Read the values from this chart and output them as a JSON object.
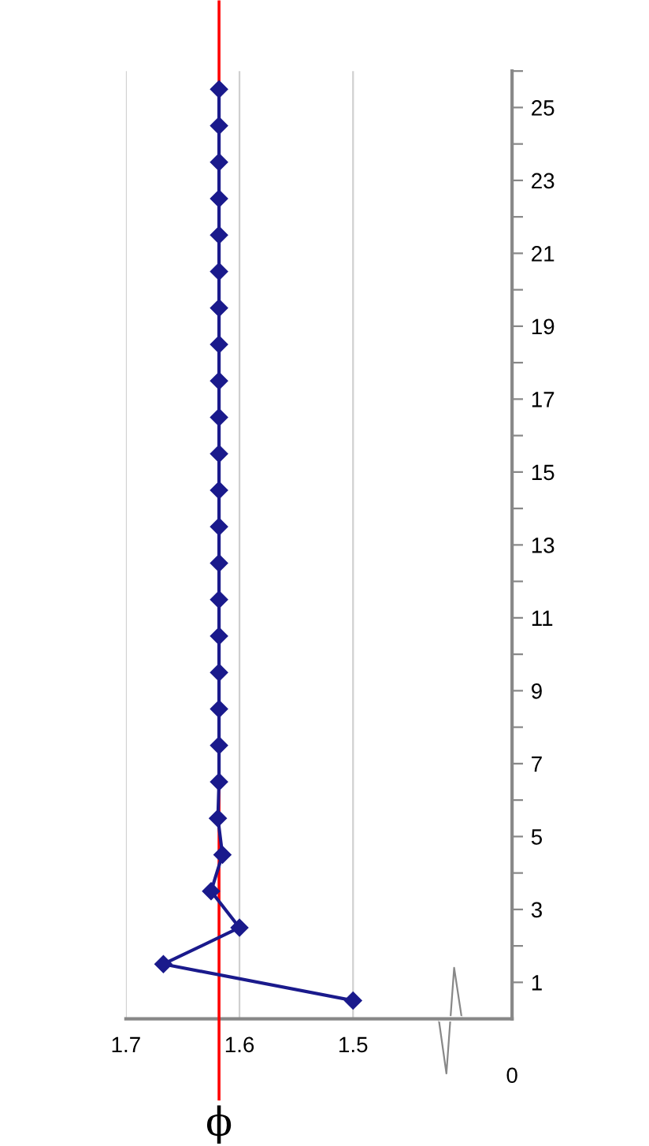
{
  "chart_data": {
    "type": "line",
    "series": [
      {
        "color": "#1a1a8c",
        "x": [
          1.5,
          1.667,
          1.6,
          1.625,
          1.615,
          1.619,
          1.618,
          1.618,
          1.618,
          1.618,
          1.618,
          1.618,
          1.618,
          1.618,
          1.618,
          1.618,
          1.618,
          1.618,
          1.618,
          1.618,
          1.618,
          1.618,
          1.618,
          1.618,
          1.618,
          1.618
        ],
        "values": [
          0.5,
          1.5,
          2.5,
          3.5,
          4.5,
          5.5,
          6.5,
          7.5,
          8.5,
          9.5,
          10.5,
          11.5,
          12.5,
          13.5,
          14.5,
          15.5,
          16.5,
          17.5,
          18.5,
          19.5,
          20.5,
          21.5,
          22.5,
          23.5,
          24.5,
          25.5
        ]
      }
    ],
    "marker": "diamond",
    "line_style": "solid",
    "grid": "x",
    "legend": false,
    "xlim": [
      1.7,
      1.36
    ],
    "xticks": [
      1.7,
      1.6,
      1.5
    ],
    "ylim": [
      0,
      26
    ],
    "yticks": [
      {
        "value": 1,
        "label": "1"
      },
      {
        "value": 2,
        "label": null
      },
      {
        "value": 3,
        "label": "3"
      },
      {
        "value": 4,
        "label": null
      },
      {
        "value": 5,
        "label": "5"
      },
      {
        "value": 6,
        "label": null
      },
      {
        "value": 7,
        "label": "7"
      },
      {
        "value": 8,
        "label": null
      },
      {
        "value": 9,
        "label": "9"
      },
      {
        "value": 10,
        "label": null
      },
      {
        "value": 11,
        "label": "11"
      },
      {
        "value": 12,
        "label": null
      },
      {
        "value": 13,
        "label": "13"
      },
      {
        "value": 14,
        "label": null
      },
      {
        "value": 15,
        "label": "15"
      },
      {
        "value": 16,
        "label": null
      },
      {
        "value": 17,
        "label": "17"
      },
      {
        "value": 18,
        "label": null
      },
      {
        "value": 19,
        "label": "19"
      },
      {
        "value": 20,
        "label": null
      },
      {
        "value": 21,
        "label": "21"
      },
      {
        "value": 22,
        "label": null
      },
      {
        "value": 23,
        "label": "23"
      },
      {
        "value": 24,
        "label": null
      },
      {
        "value": 25,
        "label": "25"
      },
      {
        "value": 26,
        "label": null
      }
    ],
    "ref_lines": [
      {
        "axis": "x",
        "value": 1.618,
        "label": "ϕ",
        "color": "#ff0000"
      }
    ],
    "annotations": [
      "0"
    ]
  }
}
